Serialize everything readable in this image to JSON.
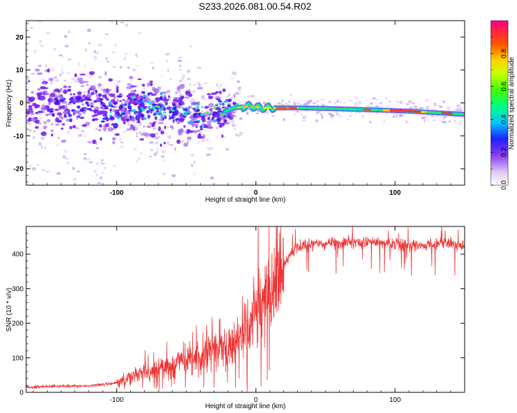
{
  "title": "S233.2026.081.00.54.R02",
  "chart_data": [
    {
      "type": "heatmap",
      "xlabel": "Height of straight line (km)",
      "ylabel": "Frequency (Hz)",
      "xlim": [
        -165,
        150
      ],
      "ylim": [
        -25,
        25
      ],
      "xticks": [
        -100,
        0,
        100
      ],
      "yticks": [
        -20,
        -10,
        0,
        10,
        20
      ],
      "ridge": {
        "x": [
          -165,
          -140,
          -120,
          -100,
          -80,
          -60,
          -40,
          -25,
          -15,
          -5,
          5,
          15,
          30,
          60,
          90,
          110,
          130,
          150
        ],
        "freq": [
          -0.5,
          -0.5,
          -1.0,
          -3.0,
          -1.5,
          -2.5,
          -4.0,
          -3.0,
          -1.5,
          -1.0,
          -1.5,
          -1.5,
          -1.5,
          -1.8,
          -2.2,
          -2.5,
          -3.0,
          -3.5
        ]
      },
      "colorbar": {
        "label": "Normalized spectral amplitude",
        "range": [
          0,
          1
        ],
        "ticks": [
          0.0,
          0.2,
          0.4,
          0.6,
          0.8
        ],
        "tick_labels": [
          "0.0",
          "0.2",
          "0.4",
          "0.6",
          "0.8"
        ]
      }
    },
    {
      "type": "line",
      "xlabel": "Height of straight line (km)",
      "ylabel": "SNR (10 * v/v)",
      "xlim": [
        -165,
        150
      ],
      "ylim": [
        0,
        480
      ],
      "xticks": [
        -100,
        0,
        100
      ],
      "yticks": [
        0,
        100,
        200,
        300,
        400
      ],
      "color": "#ee3333",
      "series": [
        {
          "name": "SNR",
          "x": [
            -165,
            -140,
            -120,
            -105,
            -95,
            -85,
            -75,
            -65,
            -55,
            -45,
            -38,
            -30,
            -22,
            -15,
            -8,
            0,
            5,
            10,
            15,
            20,
            25,
            30,
            40,
            60,
            80,
            100,
            120,
            140,
            150
          ],
          "y": [
            15,
            18,
            18,
            25,
            35,
            50,
            60,
            75,
            90,
            100,
            110,
            120,
            130,
            140,
            170,
            220,
            260,
            290,
            330,
            370,
            400,
            420,
            430,
            432,
            435,
            430,
            425,
            430,
            425
          ]
        }
      ]
    }
  ]
}
